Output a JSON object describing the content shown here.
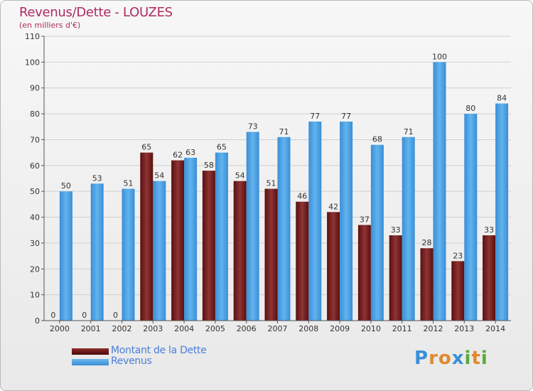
{
  "header": {
    "title": "Revenus/Dette - LOUZES",
    "subtitle": "(en milliers d'€)"
  },
  "legend": {
    "debt_label": "Montant de la Dette",
    "revenue_label": "Revenus"
  },
  "logo": {
    "text": "Proxiti",
    "letters": [
      "P",
      "r",
      "o",
      "x",
      "i",
      "t",
      "i"
    ],
    "colors": [
      "#3a8fd6",
      "#e08a2e",
      "#e08a2e",
      "#3a8fd6",
      "#5aaa3a",
      "#e08a2e",
      "#5aaa3a"
    ]
  },
  "colors": {
    "debt": "#7a1e1e",
    "debt_light": "#8e3a3a",
    "revenue": "#4a9ee0",
    "revenue_light": "#5aaee8",
    "axis_text": "#333333",
    "grid": "#cccccc"
  },
  "chart_data": {
    "type": "bar",
    "title": "Revenus/Dette - LOUZES",
    "subtitle": "(en milliers d'€)",
    "categories": [
      "2000",
      "2001",
      "2002",
      "2003",
      "2004",
      "2005",
      "2006",
      "2007",
      "2008",
      "2009",
      "2010",
      "2011",
      "2012",
      "2013",
      "2014"
    ],
    "series": [
      {
        "name": "Montant de la Dette",
        "values": [
          0,
          0,
          0,
          65,
          62,
          58,
          54,
          51,
          46,
          42,
          37,
          33,
          28,
          23,
          33
        ]
      },
      {
        "name": "Revenus",
        "values": [
          50,
          53,
          51,
          54,
          63,
          65,
          73,
          71,
          77,
          77,
          68,
          71,
          100,
          80,
          84
        ]
      }
    ],
    "ylim": [
      0,
      110
    ],
    "yticks": [
      0,
      10,
      20,
      30,
      40,
      50,
      60,
      70,
      80,
      90,
      100,
      110
    ],
    "grid": true,
    "legend_position": "bottom-left"
  }
}
